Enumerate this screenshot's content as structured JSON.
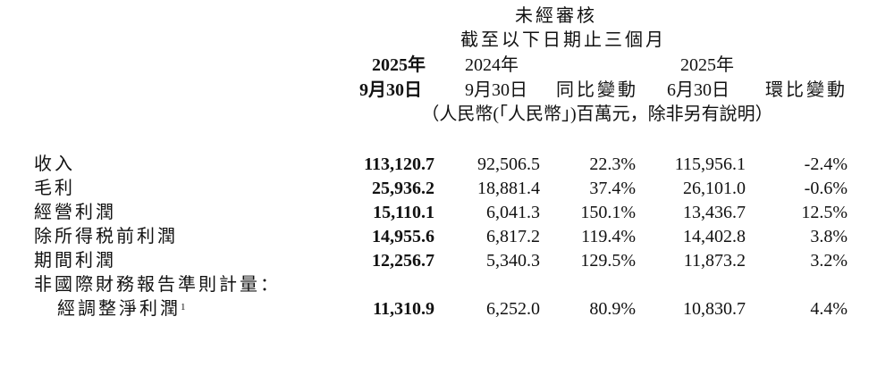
{
  "header": {
    "audit_status": "未經審核",
    "period": "截至以下日期止三個月",
    "columns": [
      {
        "year": "2025年",
        "date": "9月30日"
      },
      {
        "year": "2024年",
        "date": "9月30日"
      },
      {
        "year": "",
        "date": "同比變動"
      },
      {
        "year": "2025年",
        "date": "6月30日"
      },
      {
        "year": "",
        "date": "環比變動"
      }
    ],
    "unit_note": "（人民幣(「人民幣」)百萬元，除非另有說明）"
  },
  "rows": [
    {
      "label": "收入",
      "values": [
        "113,120.7",
        "92,506.5",
        "22.3%",
        "115,956.1",
        "-2.4%"
      ]
    },
    {
      "label": "毛利",
      "values": [
        "25,936.2",
        "18,881.4",
        "37.4%",
        "26,101.0",
        "-0.6%"
      ]
    },
    {
      "label": "經營利潤",
      "values": [
        "15,110.1",
        "6,041.3",
        "150.1%",
        "13,436.7",
        "12.5%"
      ]
    },
    {
      "label": "除所得税前利潤",
      "values": [
        "14,955.6",
        "6,817.2",
        "119.4%",
        "14,402.8",
        "3.8%"
      ]
    },
    {
      "label": "期間利潤",
      "values": [
        "12,256.7",
        "5,340.3",
        "129.5%",
        "11,873.2",
        "3.2%"
      ]
    }
  ],
  "non_ifrs": {
    "heading": "非國際財務報告準則計量：",
    "label": "經調整淨利潤",
    "footnote": "1",
    "values": [
      "11,310.9",
      "6,252.0",
      "80.9%",
      "10,830.7",
      "4.4%"
    ]
  }
}
